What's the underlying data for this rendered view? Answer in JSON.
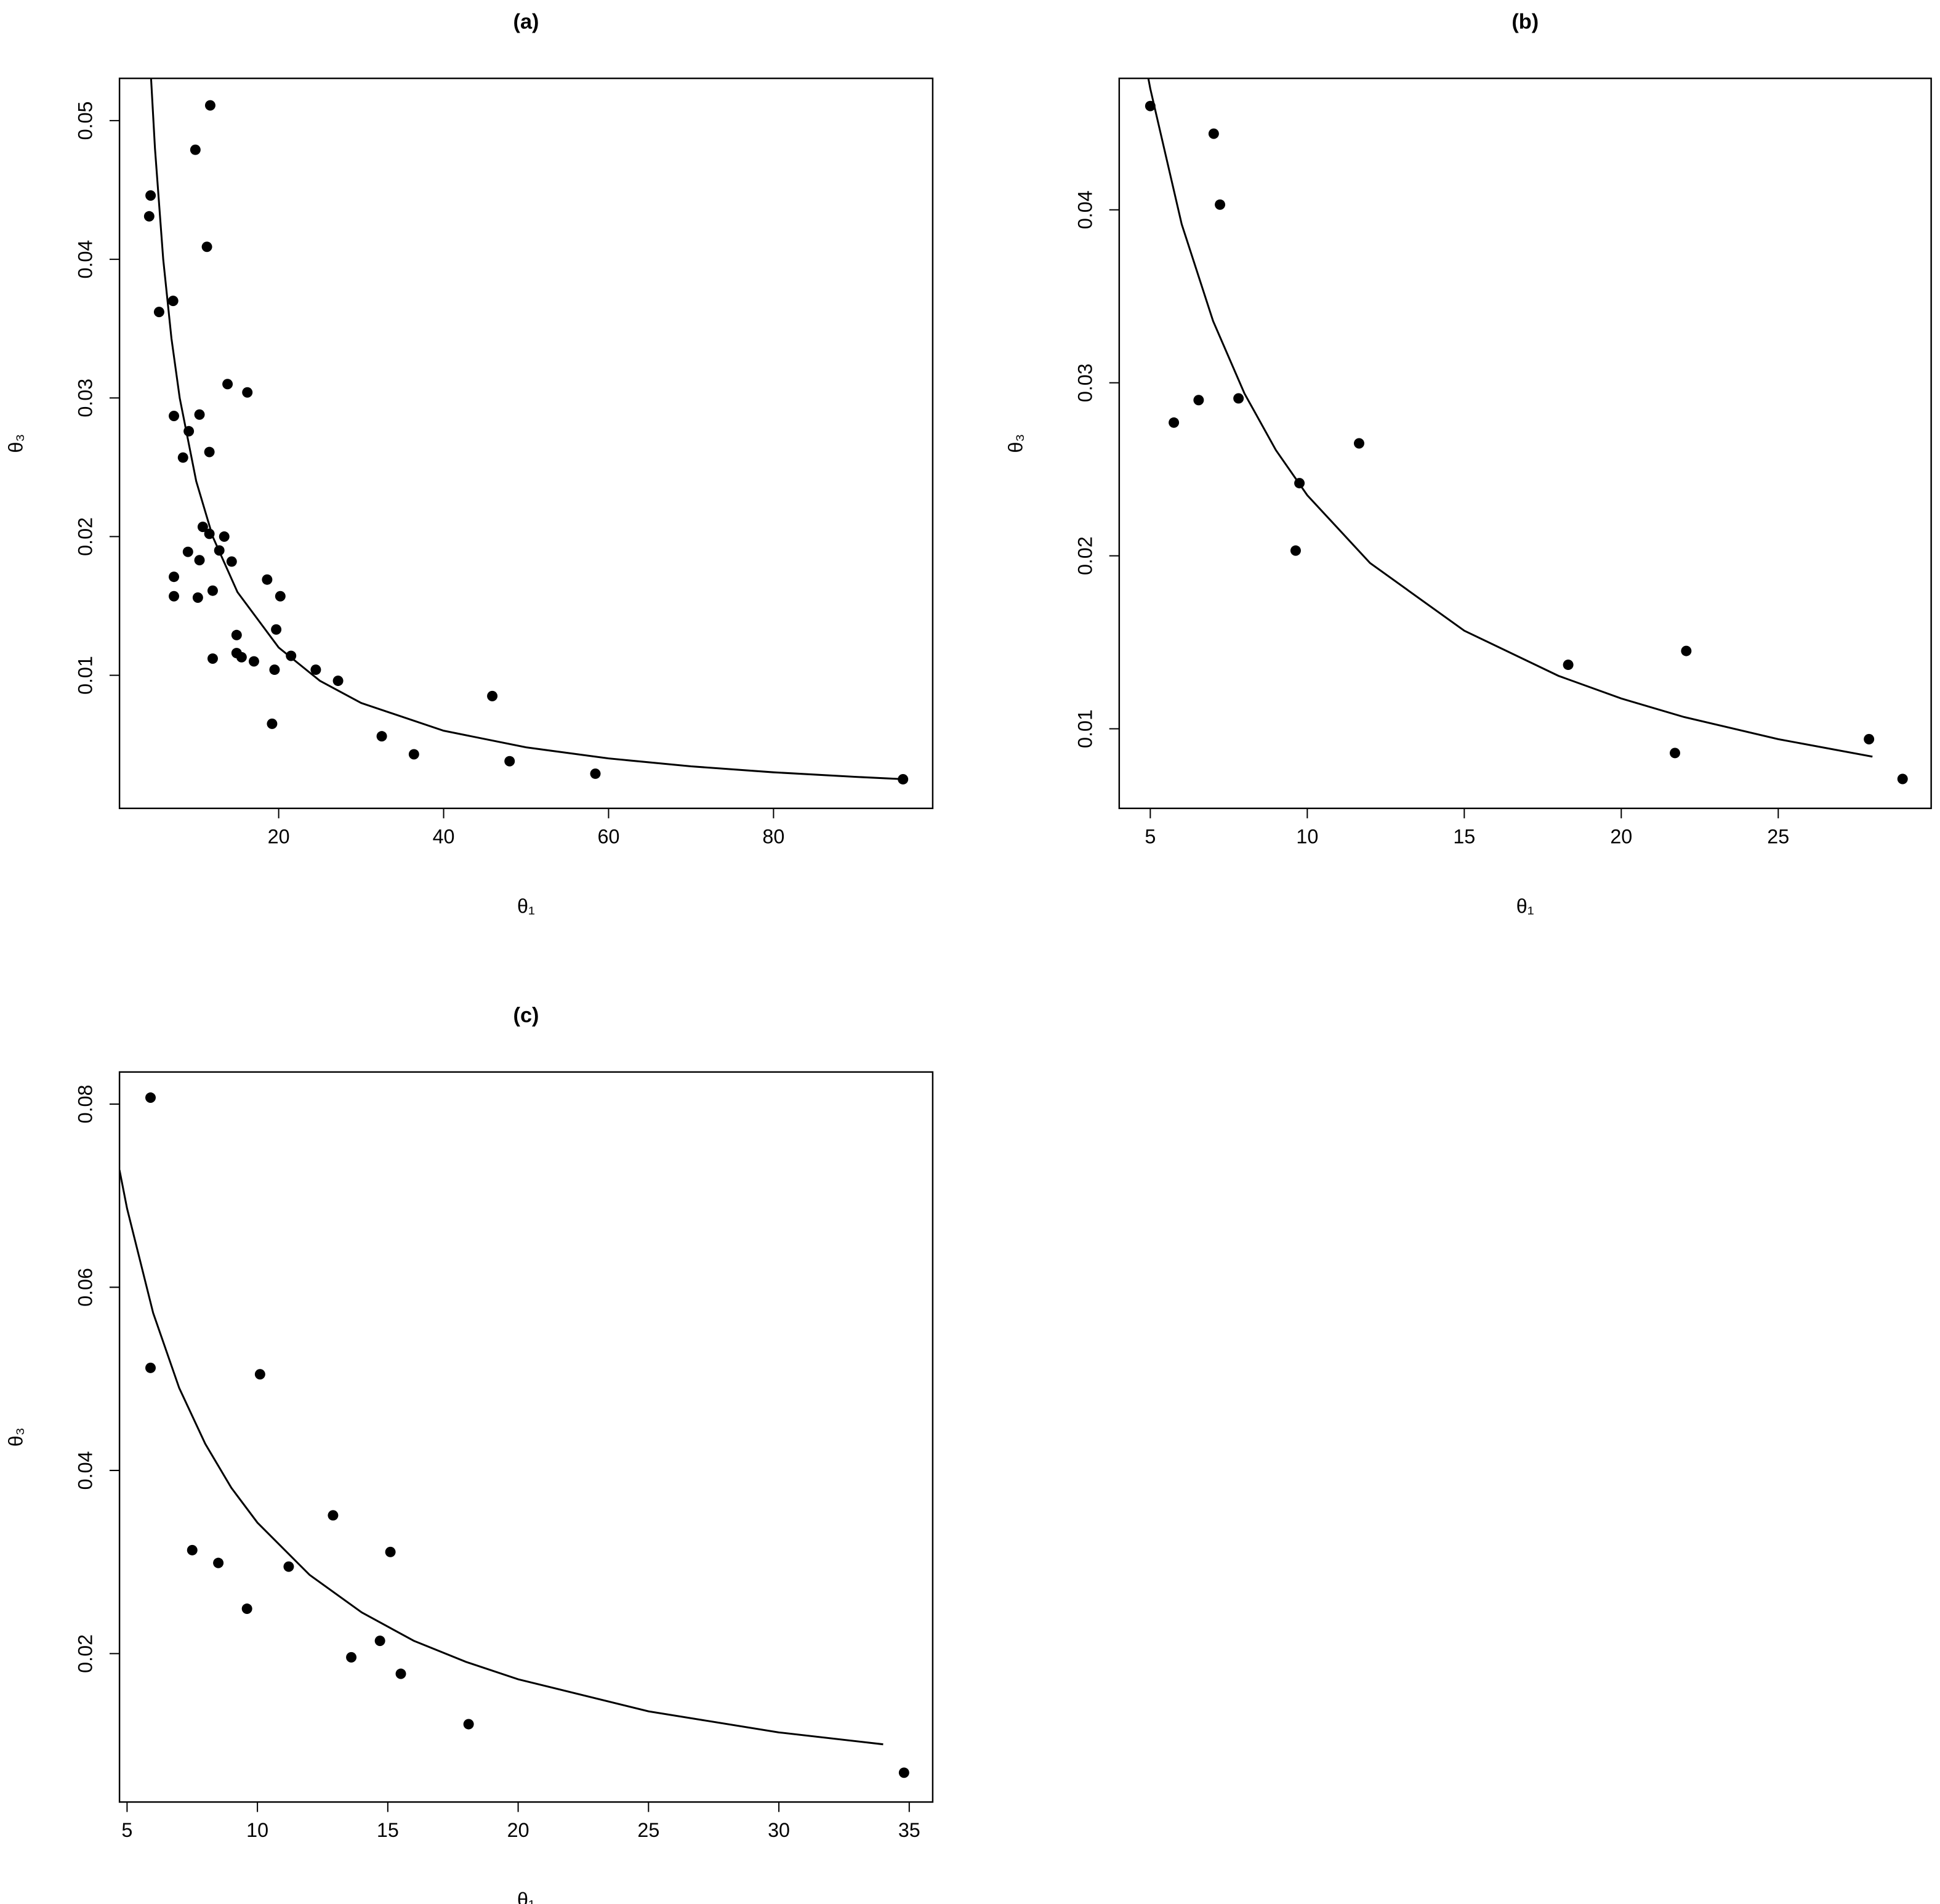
{
  "chart_data": [
    {
      "type": "scatter",
      "title": "(a)",
      "x_label": "θ₁",
      "y_label": "θ₃",
      "xlim": [
        0.7,
        99.3
      ],
      "ylim": [
        0.0004,
        0.05305
      ],
      "xticks": [
        20,
        40,
        60,
        80
      ],
      "yticks": [
        0.01,
        0.02,
        0.03,
        0.04,
        0.05
      ],
      "series": [
        {
          "type": "scatter",
          "color": "#000000",
          "x": [
            4.47,
            4.3,
            5.5,
            7.2,
            7.3,
            8.4,
            9.1,
            9.9,
            10.4,
            11.7,
            11.3,
            11.6,
            10.8,
            11.6,
            13.4,
            9.0,
            12.8,
            10.4,
            14.3,
            7.3,
            7.3,
            10.2,
            12.0,
            13.8,
            16.2,
            18.6,
            20.2,
            19.7,
            14.9,
            14.9,
            15.5,
            12.0,
            17.0,
            21.5,
            19.5,
            24.5,
            27.2,
            19.2,
            32.5,
            36.4,
            45.9,
            48.0,
            58.4,
            95.7
          ],
          "values": [
            0.0446,
            0.0431,
            0.0362,
            0.037,
            0.0287,
            0.0257,
            0.0276,
            0.0479,
            0.0288,
            0.0511,
            0.0409,
            0.0261,
            0.0207,
            0.0202,
            0.02,
            0.0189,
            0.019,
            0.0183,
            0.0182,
            0.0171,
            0.0157,
            0.0156,
            0.0161,
            0.031,
            0.0304,
            0.0169,
            0.0157,
            0.0133,
            0.0129,
            0.0116,
            0.0113,
            0.0112,
            0.011,
            0.0114,
            0.0104,
            0.0104,
            0.0096,
            0.0065,
            0.0056,
            0.0043,
            0.0085,
            0.0038,
            0.0029,
            0.0025
          ]
        },
        {
          "type": "line",
          "color": "#000000",
          "x": [
            4.5,
            5,
            6,
            7,
            8,
            10,
            12,
            15,
            20,
            25,
            30,
            40,
            50,
            60,
            70,
            80,
            90,
            96
          ],
          "values": [
            0.05333,
            0.048,
            0.04,
            0.03429,
            0.03,
            0.024,
            0.02,
            0.016,
            0.012,
            0.0096,
            0.008,
            0.006,
            0.0048,
            0.004,
            0.00343,
            0.003,
            0.00267,
            0.0025
          ]
        }
      ]
    },
    {
      "type": "scatter",
      "title": "(b)",
      "x_label": "θ₁",
      "y_label": "θ₃",
      "xlim": [
        4.01,
        29.87
      ],
      "ylim": [
        0.0054,
        0.0476
      ],
      "xticks": [
        5,
        10,
        15,
        20,
        25
      ],
      "yticks": [
        0.01,
        0.02,
        0.03,
        0.04
      ],
      "series": [
        {
          "type": "scatter",
          "color": "#000000",
          "x": [
            5.0,
            7.02,
            7.22,
            5.75,
            6.54,
            7.81,
            9.75,
            9.63,
            11.65,
            18.31,
            22.07,
            21.71,
            27.89,
            28.96
          ],
          "values": [
            0.046,
            0.0444,
            0.0403,
            0.0277,
            0.029,
            0.0291,
            0.0242,
            0.0203,
            0.0265,
            0.0137,
            0.0145,
            0.0086,
            0.0094,
            0.0071
          ]
        },
        {
          "type": "line",
          "color": "#000000",
          "x": [
            4.9,
            5,
            6,
            7,
            8,
            9,
            10,
            12,
            15,
            18,
            20,
            22,
            25,
            28
          ],
          "values": [
            0.04796,
            0.047,
            0.03917,
            0.03357,
            0.02938,
            0.02611,
            0.0235,
            0.01958,
            0.01567,
            0.01306,
            0.01175,
            0.01068,
            0.0094,
            0.00839
          ]
        }
      ]
    },
    {
      "type": "scatter",
      "title": "(c)",
      "x_label": "θ₁",
      "y_label": "θ₃",
      "xlim": [
        4.71,
        35.9
      ],
      "ylim": [
        0.0038,
        0.0835
      ],
      "xticks": [
        5,
        10,
        15,
        20,
        25,
        30,
        35
      ],
      "yticks": [
        0.02,
        0.04,
        0.06,
        0.08
      ],
      "series": [
        {
          "type": "scatter",
          "color": "#000000",
          "x": [
            5.9,
            5.9,
            10.1,
            7.5,
            8.5,
            9.6,
            11.2,
            12.9,
            15.1,
            13.6,
            14.7,
            15.5,
            18.1,
            34.8
          ],
          "values": [
            0.0807,
            0.0512,
            0.0505,
            0.0313,
            0.0299,
            0.0249,
            0.0295,
            0.0351,
            0.0311,
            0.0196,
            0.0214,
            0.0178,
            0.0123,
            0.007
          ]
        },
        {
          "type": "line",
          "color": "#000000",
          "x": [
            4.71,
            5,
            6,
            7,
            8,
            9,
            10,
            12,
            14,
            16,
            18,
            20,
            25,
            30,
            34
          ],
          "values": [
            0.0728,
            0.0686,
            0.0572,
            0.049,
            0.0429,
            0.0381,
            0.0343,
            0.0286,
            0.0245,
            0.0214,
            0.0191,
            0.0172,
            0.0137,
            0.0114,
            0.0101
          ]
        }
      ]
    }
  ]
}
